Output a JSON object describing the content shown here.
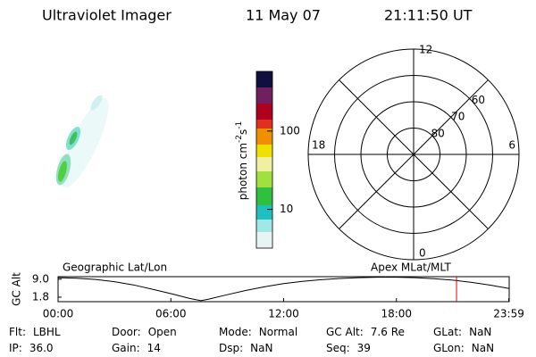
{
  "header": {
    "title": "Ultraviolet Imager",
    "date": "11 May 07",
    "time": "21:11:50 UT"
  },
  "colorbar": {
    "label": "photon cm",
    "label_exp1": "-2",
    "label_unit2": "s",
    "label_exp2": "-1",
    "log_scale": true,
    "range": [
      3.2,
      577
    ],
    "ticks": [
      10,
      100
    ]
  },
  "polar": {
    "lat_min": 50,
    "rings": [
      60,
      70,
      80
    ],
    "hour_labels": [
      12,
      6,
      0,
      18
    ]
  },
  "orbit_plot": {
    "ylabel": "GC Alt",
    "left_label": "Geographic Lat/Lon",
    "right_label": "Apex MLat/MLT",
    "ylim": [
      0,
      10
    ],
    "yticks": [
      {
        "value": 9,
        "label": "9.0"
      },
      {
        "value": 1.8,
        "label": "1.8"
      }
    ],
    "xlim": [
      0,
      24
    ],
    "xticks": [
      {
        "value": 0,
        "label": "00:00"
      },
      {
        "value": 6,
        "label": "06:00"
      },
      {
        "value": 12,
        "label": "12:00"
      },
      {
        "value": 18,
        "label": "18:00"
      },
      {
        "value": 23.98,
        "label": "23:59"
      }
    ],
    "x": [
      0,
      1,
      2,
      3,
      4,
      5,
      6,
      7,
      7.6,
      8,
      9,
      10,
      11,
      12,
      13,
      14,
      15,
      16,
      17,
      18,
      19,
      20,
      21,
      22,
      23,
      24
    ],
    "values": [
      9.6,
      9.4,
      8.9,
      8.0,
      6.7,
      5.0,
      3.2,
      1.3,
      0.4,
      1.0,
      2.8,
      4.5,
      6.0,
      7.2,
      8.1,
      8.8,
      9.3,
      9.6,
      9.8,
      9.8,
      9.6,
      9.2,
      8.6,
      7.7,
      6.6,
      5.3
    ],
    "line_color": "#000000",
    "current_time": 21.197,
    "current_color": "#e00000"
  },
  "status": {
    "rows": [
      [
        {
          "label": "Flt:",
          "value": "LBHL"
        },
        {
          "label": "Door:",
          "value": "Open"
        },
        {
          "label": "Mode:",
          "value": "Normal"
        },
        {
          "label": "GC Alt:",
          "value": "7.6 Re"
        },
        {
          "label": "GLat:",
          "value": "NaN"
        }
      ],
      [
        {
          "label": "IP:",
          "value": "36.0"
        },
        {
          "label": "Gain:",
          "value": "14"
        },
        {
          "label": "Dsp:",
          "value": "NaN"
        },
        {
          "label": "Seq:",
          "value": "39"
        },
        {
          "label": "GLon:",
          "value": "NaN"
        }
      ]
    ]
  }
}
